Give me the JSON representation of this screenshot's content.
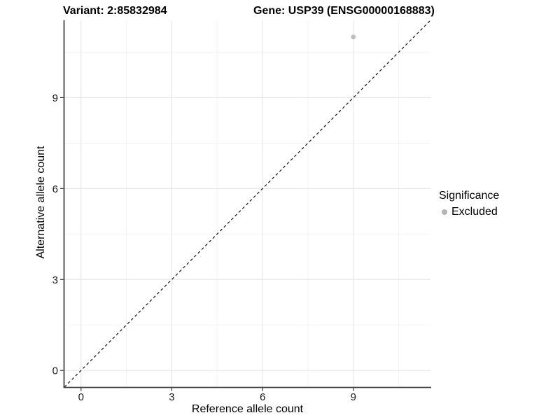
{
  "chart_data": {
    "type": "scatter",
    "title_left": "Variant: 2:85832984",
    "title_right": "Gene: USP39 (ENSG00000168883)",
    "xlabel": "Reference allele count",
    "ylabel": "Alternative allele count",
    "xlim": [
      -0.55,
      11.55
    ],
    "ylim": [
      -0.55,
      11.55
    ],
    "x_major_ticks": [
      0,
      3,
      6,
      9
    ],
    "y_major_ticks": [
      0,
      3,
      6,
      9
    ],
    "x_minor_ticks": [
      1.5,
      4.5,
      7.5,
      10.5
    ],
    "y_minor_ticks": [
      1.5,
      4.5,
      7.5,
      10.5
    ],
    "grid": true,
    "reference_line": {
      "type": "identity-diagonal",
      "style": "dashed",
      "color": "#111111"
    },
    "series": [
      {
        "name": "Excluded",
        "color": "#bdbdbd",
        "points": [
          {
            "x": 9,
            "y": 11
          }
        ]
      }
    ],
    "legend": {
      "title": "Significance",
      "position": "right",
      "entries": [
        {
          "label": "Excluded",
          "color": "#b3b3b3"
        }
      ]
    },
    "style": {
      "background": "#ffffff",
      "grid_major_color": "#e7e7e7",
      "grid_minor_color": "#f1f1f1",
      "axis_line_color": "#444444",
      "tick_color": "#333333",
      "tick_label_color": "#1a1a1a"
    }
  }
}
